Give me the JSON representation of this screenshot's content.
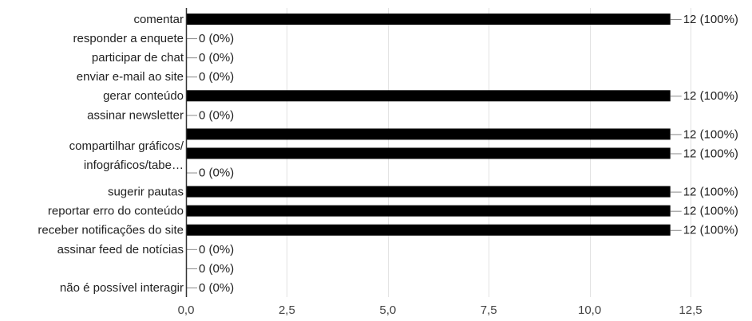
{
  "chart_data": {
    "type": "bar",
    "orientation": "horizontal",
    "title": "",
    "xlabel": "",
    "ylabel": "",
    "xlim": [
      0,
      12.5
    ],
    "ticks": [
      0,
      2.5,
      5,
      7.5,
      10,
      12.5
    ],
    "tick_labels": [
      "0,0",
      "2,5",
      "5,0",
      "7,5",
      "10,0",
      "12,5"
    ],
    "grid": true,
    "bar_color": "#000000",
    "rows": [
      {
        "category": "comentar",
        "value": 12,
        "label": "12 (100%)"
      },
      {
        "category": "responder a enquete",
        "value": 0,
        "label": "0 (0%)"
      },
      {
        "category": "participar de chat",
        "value": 0,
        "label": "0 (0%)"
      },
      {
        "category": "enviar e-mail ao site",
        "value": 0,
        "label": "0 (0%)"
      },
      {
        "category": "gerar conteúdo",
        "value": 12,
        "label": "12 (100%)"
      },
      {
        "category": "assinar newsletter",
        "value": 0,
        "label": "0 (0%)"
      },
      {
        "category": "",
        "value": 12,
        "label": "12 (100%)"
      },
      {
        "category": "",
        "value": 12,
        "label": "12 (100%)"
      },
      {
        "category": "",
        "value": 0,
        "label": "0 (0%)"
      },
      {
        "category": "sugerir pautas",
        "value": 12,
        "label": "12 (100%)"
      },
      {
        "category": "reportar erro do conteúdo",
        "value": 12,
        "label": "12 (100%)"
      },
      {
        "category": "receber notificações do site",
        "value": 12,
        "label": "12 (100%)"
      },
      {
        "category": "assinar feed de notícias",
        "value": 0,
        "label": "0 (0%)"
      },
      {
        "category": "",
        "value": 0,
        "label": "0 (0%)"
      },
      {
        "category": "não é possível interagir",
        "value": 0,
        "label": "0 (0%)"
      }
    ],
    "extra_labels": [
      "compartilhar gráficos/",
      "infográficos/tabe…"
    ]
  }
}
